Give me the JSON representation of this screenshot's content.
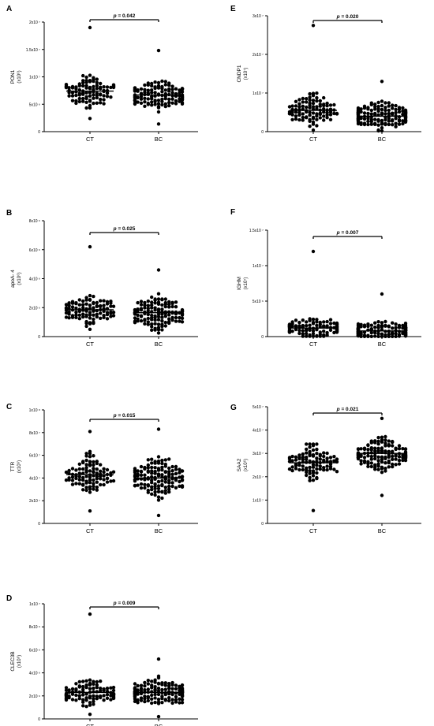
{
  "chart_data": [
    {
      "panel": "A",
      "type": "scatter",
      "ylabel_lines": [
        "PON1",
        "(x10⁶)"
      ],
      "ylim": [
        0,
        20000000
      ],
      "yticks": [
        {
          "v": 0,
          "label": "0"
        },
        {
          "v": 5000000,
          "label": "5x10 ⁶"
        },
        {
          "v": 10000000,
          "label": "1x10 ⁷"
        },
        {
          "v": 15000000,
          "label": "1.5x10 ⁷"
        },
        {
          "v": 20000000,
          "label": "2x10 ⁷"
        }
      ],
      "categories": [
        "CT",
        "BC"
      ],
      "groups": [
        {
          "name": "CT",
          "n": 100,
          "median": 7400000,
          "spread": 2400000,
          "max": 19000000,
          "min": 2400000
        },
        {
          "name": "BC",
          "n": 130,
          "median": 6700000,
          "spread": 2200000,
          "max": 14800000,
          "min": 1400000
        }
      ],
      "pvalue": "p = 0.042"
    },
    {
      "panel": "B",
      "type": "scatter",
      "ylabel_lines": [
        "apoA- 4",
        "(x10⁶)"
      ],
      "ylim": [
        0,
        8000000
      ],
      "yticks": [
        {
          "v": 0,
          "label": "0"
        },
        {
          "v": 2000000,
          "label": "2x10 ⁶"
        },
        {
          "v": 4000000,
          "label": "4x10 ⁶"
        },
        {
          "v": 6000000,
          "label": "6x10 ⁶"
        },
        {
          "v": 8000000,
          "label": "8x10 ⁶"
        }
      ],
      "categories": [
        "CT",
        "BC"
      ],
      "groups": [
        {
          "name": "CT",
          "n": 100,
          "median": 1850000,
          "spread": 900000,
          "max": 6200000,
          "min": 500000
        },
        {
          "name": "BC",
          "n": 130,
          "median": 1650000,
          "spread": 900000,
          "max": 4600000,
          "min": 250000
        }
      ],
      "pvalue": "p = 0.025"
    },
    {
      "panel": "C",
      "type": "scatter",
      "ylabel_lines": [
        "TTR",
        "(x10⁶)"
      ],
      "ylim": [
        0,
        100000000
      ],
      "yticks": [
        {
          "v": 0,
          "label": "0"
        },
        {
          "v": 20000000,
          "label": "2x10 ⁷"
        },
        {
          "v": 40000000,
          "label": "4x10 ⁷"
        },
        {
          "v": 60000000,
          "label": "6x10 ⁷"
        },
        {
          "v": 80000000,
          "label": "8x10 ⁷"
        },
        {
          "v": 100000000,
          "label": "1x10 ⁸"
        }
      ],
      "categories": [
        "CT",
        "BC"
      ],
      "groups": [
        {
          "name": "CT",
          "n": 100,
          "median": 43000000,
          "spread": 15000000,
          "max": 81000000,
          "min": 11000000
        },
        {
          "name": "BC",
          "n": 140,
          "median": 40000000,
          "spread": 15000000,
          "max": 83000000,
          "min": 7000000
        }
      ],
      "pvalue": "p = 0.015"
    },
    {
      "panel": "D",
      "type": "scatter",
      "ylabel_lines": [
        "CLEC3B",
        "(x10⁶)"
      ],
      "ylim": [
        0,
        10000000
      ],
      "yticks": [
        {
          "v": 0,
          "label": "0"
        },
        {
          "v": 2000000,
          "label": "2x10 ⁶"
        },
        {
          "v": 4000000,
          "label": "4x10 ⁶"
        },
        {
          "v": 6000000,
          "label": "6x10 ⁶"
        },
        {
          "v": 8000000,
          "label": "8x10 ⁶"
        },
        {
          "v": 10000000,
          "label": "1x10 ⁷"
        }
      ],
      "categories": [
        "CT",
        "BC"
      ],
      "groups": [
        {
          "name": "CT",
          "n": 100,
          "median": 2300000,
          "spread": 900000,
          "max": 9100000,
          "min": 400000
        },
        {
          "name": "BC",
          "n": 140,
          "median": 2300000,
          "spread": 900000,
          "max": 5200000,
          "min": 200000
        }
      ],
      "pvalue": "p = 0.009"
    },
    {
      "panel": "E",
      "type": "scatter",
      "ylabel_lines": [
        "CNDP1",
        "(x10⁷)"
      ],
      "ylim": [
        0,
        30000000
      ],
      "yticks": [
        {
          "v": 0,
          "label": "0"
        },
        {
          "v": 10000000,
          "label": "1x10 ⁷"
        },
        {
          "v": 20000000,
          "label": "2x10 ⁷"
        },
        {
          "v": 30000000,
          "label": "3x10 ⁷"
        }
      ],
      "categories": [
        "CT",
        "BC"
      ],
      "groups": [
        {
          "name": "CT",
          "n": 100,
          "median": 5500000,
          "spread": 3500000,
          "max": 27500000,
          "min": 400000
        },
        {
          "name": "BC",
          "n": 150,
          "median": 4000000,
          "spread": 2800000,
          "max": 13000000,
          "min": 200000
        }
      ],
      "pvalue": "p = 0.020"
    },
    {
      "panel": "F",
      "type": "scatter",
      "ylabel_lines": [
        "IGHM",
        "(x10⁷)"
      ],
      "ylim": [
        0,
        15000000
      ],
      "yticks": [
        {
          "v": 0,
          "label": "0"
        },
        {
          "v": 5000000,
          "label": "5x10 ⁶"
        },
        {
          "v": 10000000,
          "label": "1x10 ⁷"
        },
        {
          "v": 15000000,
          "label": "1.5x10 ⁷"
        }
      ],
      "categories": [
        "CT",
        "BC"
      ],
      "groups": [
        {
          "name": "CT",
          "n": 110,
          "median": 1200000,
          "spread": 1200000,
          "max": 12000000,
          "min": 50000
        },
        {
          "name": "BC",
          "n": 150,
          "median": 800000,
          "spread": 900000,
          "max": 6000000,
          "min": 20000
        }
      ],
      "pvalue": "p = 0.007"
    },
    {
      "panel": "G",
      "type": "scatter",
      "ylabel_lines": [
        "SAA2",
        "(x10⁶)"
      ],
      "ylim": [
        0,
        50000000
      ],
      "yticks": [
        {
          "v": 0,
          "label": "0"
        },
        {
          "v": 10000000,
          "label": "1x10 ⁷"
        },
        {
          "v": 20000000,
          "label": "2x10 ⁷"
        },
        {
          "v": 30000000,
          "label": "3x10 ⁷"
        },
        {
          "v": 40000000,
          "label": "4x10 ⁷"
        },
        {
          "v": 50000000,
          "label": "5x10 ⁷"
        }
      ],
      "categories": [
        "CT",
        "BC"
      ],
      "groups": [
        {
          "name": "CT",
          "n": 100,
          "median": 26000000,
          "spread": 6000000,
          "max": 34000000,
          "min": 5500000
        },
        {
          "name": "BC",
          "n": 140,
          "median": 30000000,
          "spread": 6000000,
          "max": 45000000,
          "min": 12000000
        }
      ],
      "pvalue": "p = 0.021"
    }
  ]
}
